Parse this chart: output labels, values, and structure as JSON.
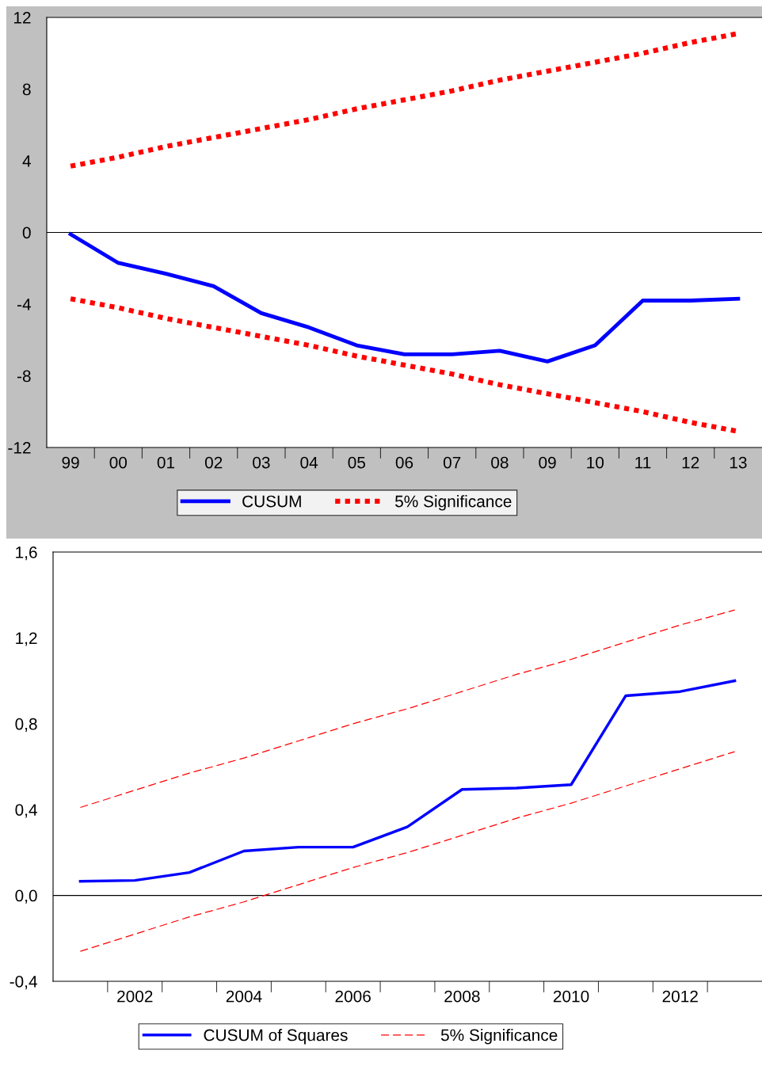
{
  "chart_data": [
    {
      "type": "line",
      "categories": [
        "99",
        "00",
        "01",
        "02",
        "03",
        "04",
        "05",
        "06",
        "07",
        "08",
        "09",
        "10",
        "11",
        "12",
        "13"
      ],
      "series": [
        {
          "name": "CUSUM",
          "color": "#0000ff",
          "line_style": "solid",
          "values": [
            -0.1,
            -1.7,
            -2.3,
            -3.0,
            -4.5,
            -5.3,
            -6.3,
            -6.8,
            -6.8,
            -6.6,
            -7.2,
            -6.3,
            -3.8,
            -3.8,
            -3.7
          ]
        },
        {
          "name": "5% Significance",
          "color": "#ff0000",
          "line_style": "dotted",
          "values": [
            3.7,
            4.2,
            4.8,
            5.3,
            5.8,
            6.3,
            6.9,
            7.4,
            7.9,
            8.5,
            9.0,
            9.5,
            10.0,
            10.6,
            11.1
          ]
        },
        {
          "color": "#ff0000",
          "line_style": "dotted",
          "values": [
            -3.7,
            -4.2,
            -4.8,
            -5.3,
            -5.8,
            -6.3,
            -6.9,
            -7.4,
            -7.9,
            -8.5,
            -9.0,
            -9.5,
            -10.0,
            -10.6,
            -11.1
          ]
        }
      ],
      "ylim": [
        -12,
        12
      ],
      "yticks": [
        -12,
        -8,
        -4,
        0,
        4,
        8,
        12
      ],
      "ref_lines": [
        {
          "axis": "y",
          "value": 0,
          "color": "#000000"
        }
      ],
      "grid": false,
      "legend": "bottom"
    },
    {
      "type": "line",
      "categories": [
        null,
        "2002",
        null,
        "2004",
        null,
        "2006",
        null,
        "2008",
        null,
        "2010",
        null,
        "2012",
        null
      ],
      "series": [
        {
          "name": "CUSUM of Squares",
          "color": "#0000ff",
          "line_style": "solid",
          "values": [
            0.066,
            0.07,
            0.107,
            0.207,
            0.225,
            0.225,
            0.32,
            0.494,
            0.5,
            0.516,
            0.93,
            0.95,
            1.0
          ]
        },
        {
          "name": "5% Significance",
          "color": "#ff0000",
          "line_style": "dashed",
          "values": [
            0.41,
            0.49,
            0.57,
            0.64,
            0.72,
            0.8,
            0.87,
            0.95,
            1.03,
            1.1,
            1.18,
            1.26,
            1.33
          ]
        },
        {
          "color": "#ff0000",
          "line_style": "dashed",
          "values": [
            -0.26,
            -0.18,
            -0.1,
            -0.03,
            0.05,
            0.13,
            0.2,
            0.28,
            0.36,
            0.43,
            0.51,
            0.59,
            0.67
          ]
        }
      ],
      "ylim": [
        -0.4,
        1.6
      ],
      "yticks": [
        {
          "value": -0.4,
          "label": "-0,4"
        },
        {
          "value": 0,
          "label": "0,0"
        },
        {
          "value": 0.4,
          "label": "0,4"
        },
        {
          "value": 0.8,
          "label": "0,8"
        },
        {
          "value": 1.2,
          "label": "1,2"
        },
        {
          "value": 1.6,
          "label": "1,6"
        }
      ],
      "ref_lines": [
        {
          "axis": "y",
          "value": 0,
          "color": "#000000"
        }
      ],
      "grid": false,
      "legend": "bottom"
    }
  ]
}
